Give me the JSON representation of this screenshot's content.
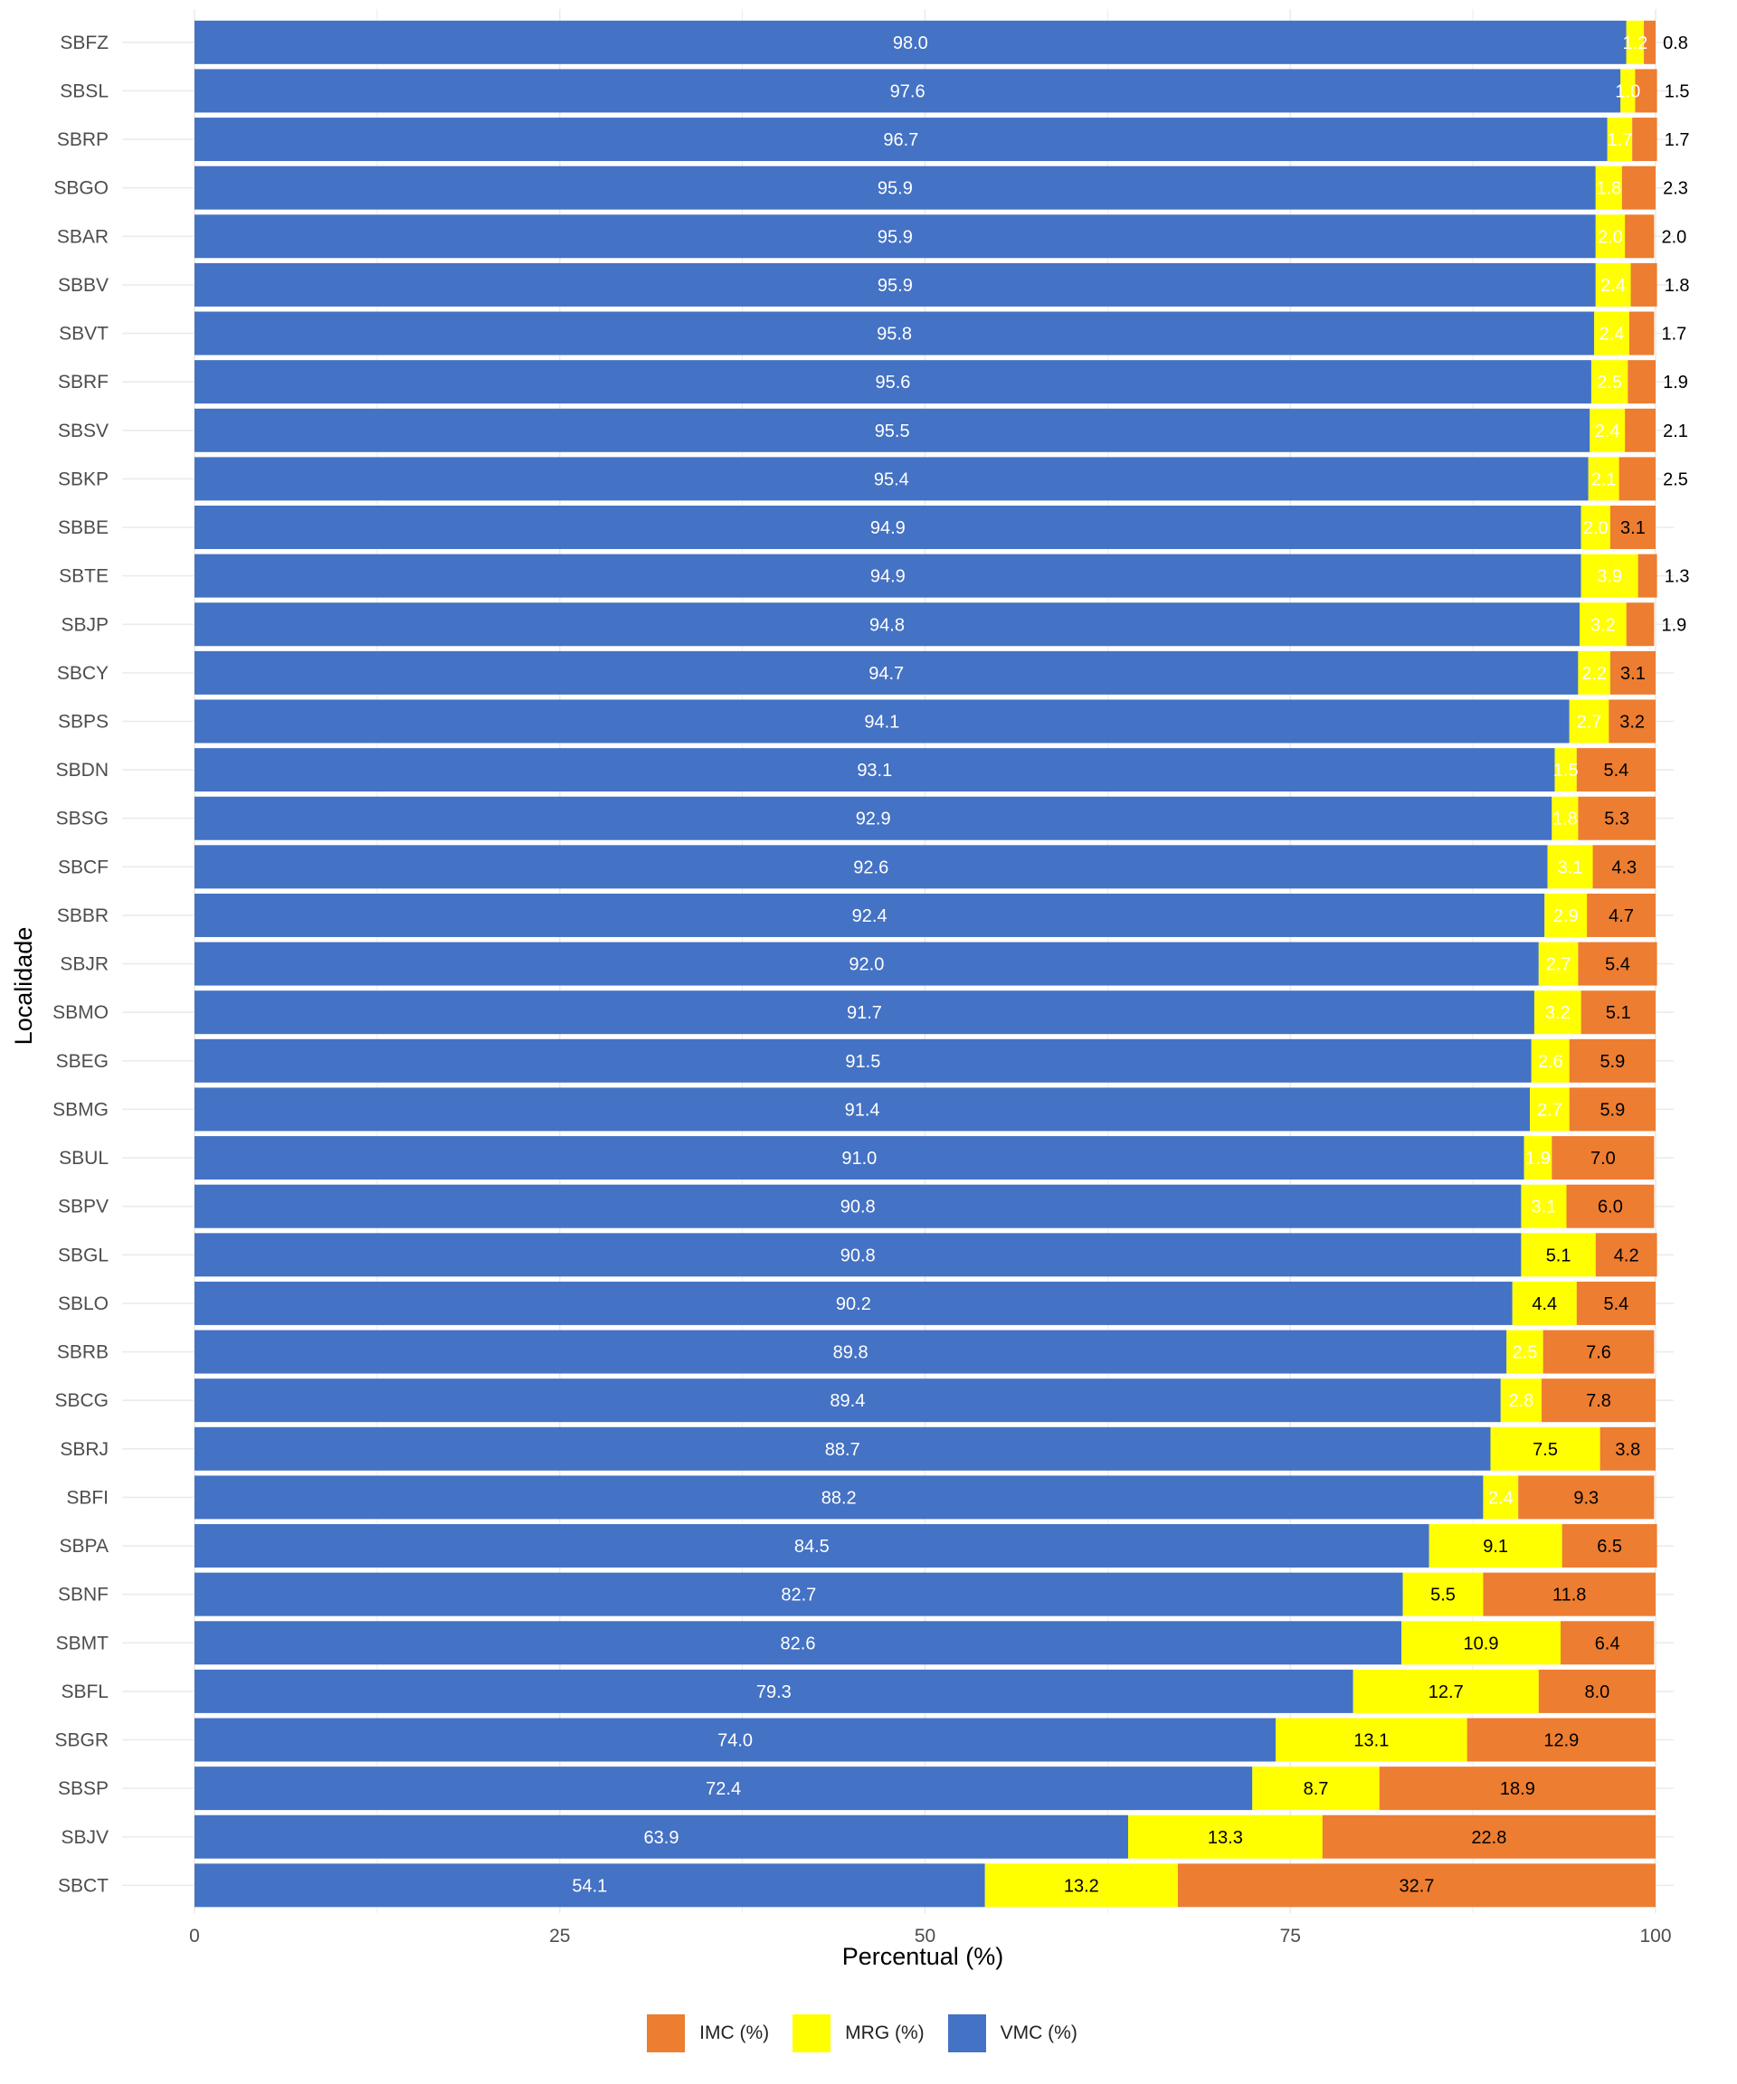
{
  "chart_data": {
    "type": "bar",
    "orientation": "horizontal",
    "stacked": true,
    "xlabel": "Percentual (%)",
    "ylabel": "Localidade",
    "xlim": [
      0,
      100
    ],
    "xticks": [
      0,
      25,
      50,
      75,
      100
    ],
    "grid": true,
    "legend_position": "bottom",
    "categories": [
      "SBFZ",
      "SBSL",
      "SBRP",
      "SBGO",
      "SBAR",
      "SBBV",
      "SBVT",
      "SBRF",
      "SBSV",
      "SBKP",
      "SBBE",
      "SBTE",
      "SBJP",
      "SBCY",
      "SBPS",
      "SBDN",
      "SBSG",
      "SBCF",
      "SBBR",
      "SBJR",
      "SBMO",
      "SBEG",
      "SBMG",
      "SBUL",
      "SBPV",
      "SBGL",
      "SBLO",
      "SBRB",
      "SBCG",
      "SBRJ",
      "SBFI",
      "SBPA",
      "SBNF",
      "SBMT",
      "SBFL",
      "SBGR",
      "SBSP",
      "SBJV",
      "SBCT"
    ],
    "series": [
      {
        "name": "VMC (%)",
        "color": "#4472C4",
        "label_color": "#ffffff",
        "values": [
          98.0,
          97.6,
          96.7,
          95.9,
          95.9,
          95.9,
          95.8,
          95.6,
          95.5,
          95.4,
          94.9,
          94.9,
          94.8,
          94.7,
          94.1,
          93.1,
          92.9,
          92.6,
          92.4,
          92.0,
          91.7,
          91.5,
          91.4,
          91.0,
          90.8,
          90.8,
          90.2,
          89.8,
          89.4,
          88.7,
          88.2,
          84.5,
          82.7,
          82.6,
          79.3,
          74.0,
          72.4,
          63.9,
          54.1
        ]
      },
      {
        "name": "MRG (%)",
        "color": "#FFFF00",
        "label_color": "#ffffff",
        "values": [
          1.2,
          1.0,
          1.7,
          1.8,
          2.0,
          2.4,
          2.4,
          2.5,
          2.4,
          2.1,
          2.0,
          3.9,
          3.2,
          2.2,
          2.7,
          1.5,
          1.8,
          3.1,
          2.9,
          2.7,
          3.2,
          2.6,
          2.7,
          1.9,
          3.1,
          5.1,
          4.4,
          2.5,
          2.8,
          7.5,
          2.4,
          9.1,
          5.5,
          10.9,
          12.7,
          13.1,
          8.7,
          13.3,
          13.2
        ]
      },
      {
        "name": "IMC (%)",
        "color": "#ED7D31",
        "label_color": "#000000",
        "values": [
          0.8,
          1.5,
          1.7,
          2.3,
          2.0,
          1.8,
          1.7,
          1.9,
          2.1,
          2.5,
          3.1,
          1.3,
          1.9,
          3.1,
          3.2,
          5.4,
          5.3,
          4.3,
          4.7,
          5.4,
          5.1,
          5.9,
          5.9,
          7.0,
          6.0,
          4.2,
          5.4,
          7.6,
          7.8,
          3.8,
          9.3,
          6.5,
          11.8,
          6.4,
          8.0,
          12.9,
          18.9,
          22.8,
          32.7
        ]
      }
    ]
  },
  "legend": {
    "items": [
      {
        "label": "IMC (%)",
        "color": "#ED7D31"
      },
      {
        "label": "MRG (%)",
        "color": "#FFFF00"
      },
      {
        "label": "VMC (%)",
        "color": "#4472C4"
      }
    ]
  }
}
